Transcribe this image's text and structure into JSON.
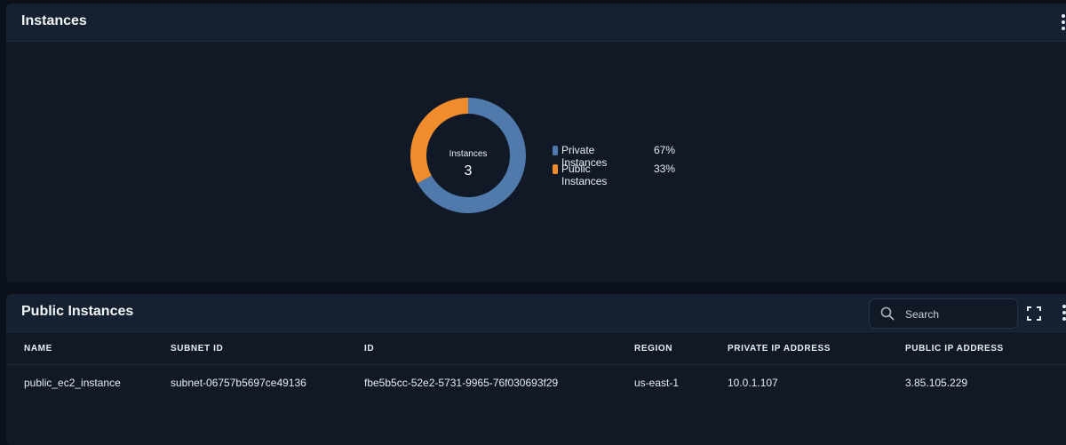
{
  "instances_panel": {
    "title": "Instances"
  },
  "chart_data": {
    "type": "pie",
    "center_label": "Instances",
    "center_value": "3",
    "slices": [
      {
        "name": "Private Instances",
        "percent": "67%",
        "value": 67,
        "color": "#4f7aab"
      },
      {
        "name": "Public Instances",
        "percent": "33%",
        "value": 33,
        "color": "#f08c2b"
      }
    ],
    "legend_position": "right"
  },
  "public_panel": {
    "title": "Public Instances",
    "search": {
      "placeholder": "Search",
      "value": ""
    },
    "icons": [
      "search-icon",
      "fullscreen-icon",
      "more-vertical-icon"
    ],
    "columns": [
      "NAME",
      "SUBNET ID",
      "ID",
      "REGION",
      "PRIVATE IP ADDRESS",
      "PUBLIC IP ADDRESS"
    ],
    "rows": [
      {
        "name": "public_ec2_instance",
        "subnet_id": "subnet-06757b5697ce49136",
        "id": "fbe5b5cc-52e2-5731-9965-76f030693f29",
        "region": "us-east-1",
        "private_ip": "10.0.1.107",
        "public_ip": "3.85.105.229"
      }
    ]
  }
}
